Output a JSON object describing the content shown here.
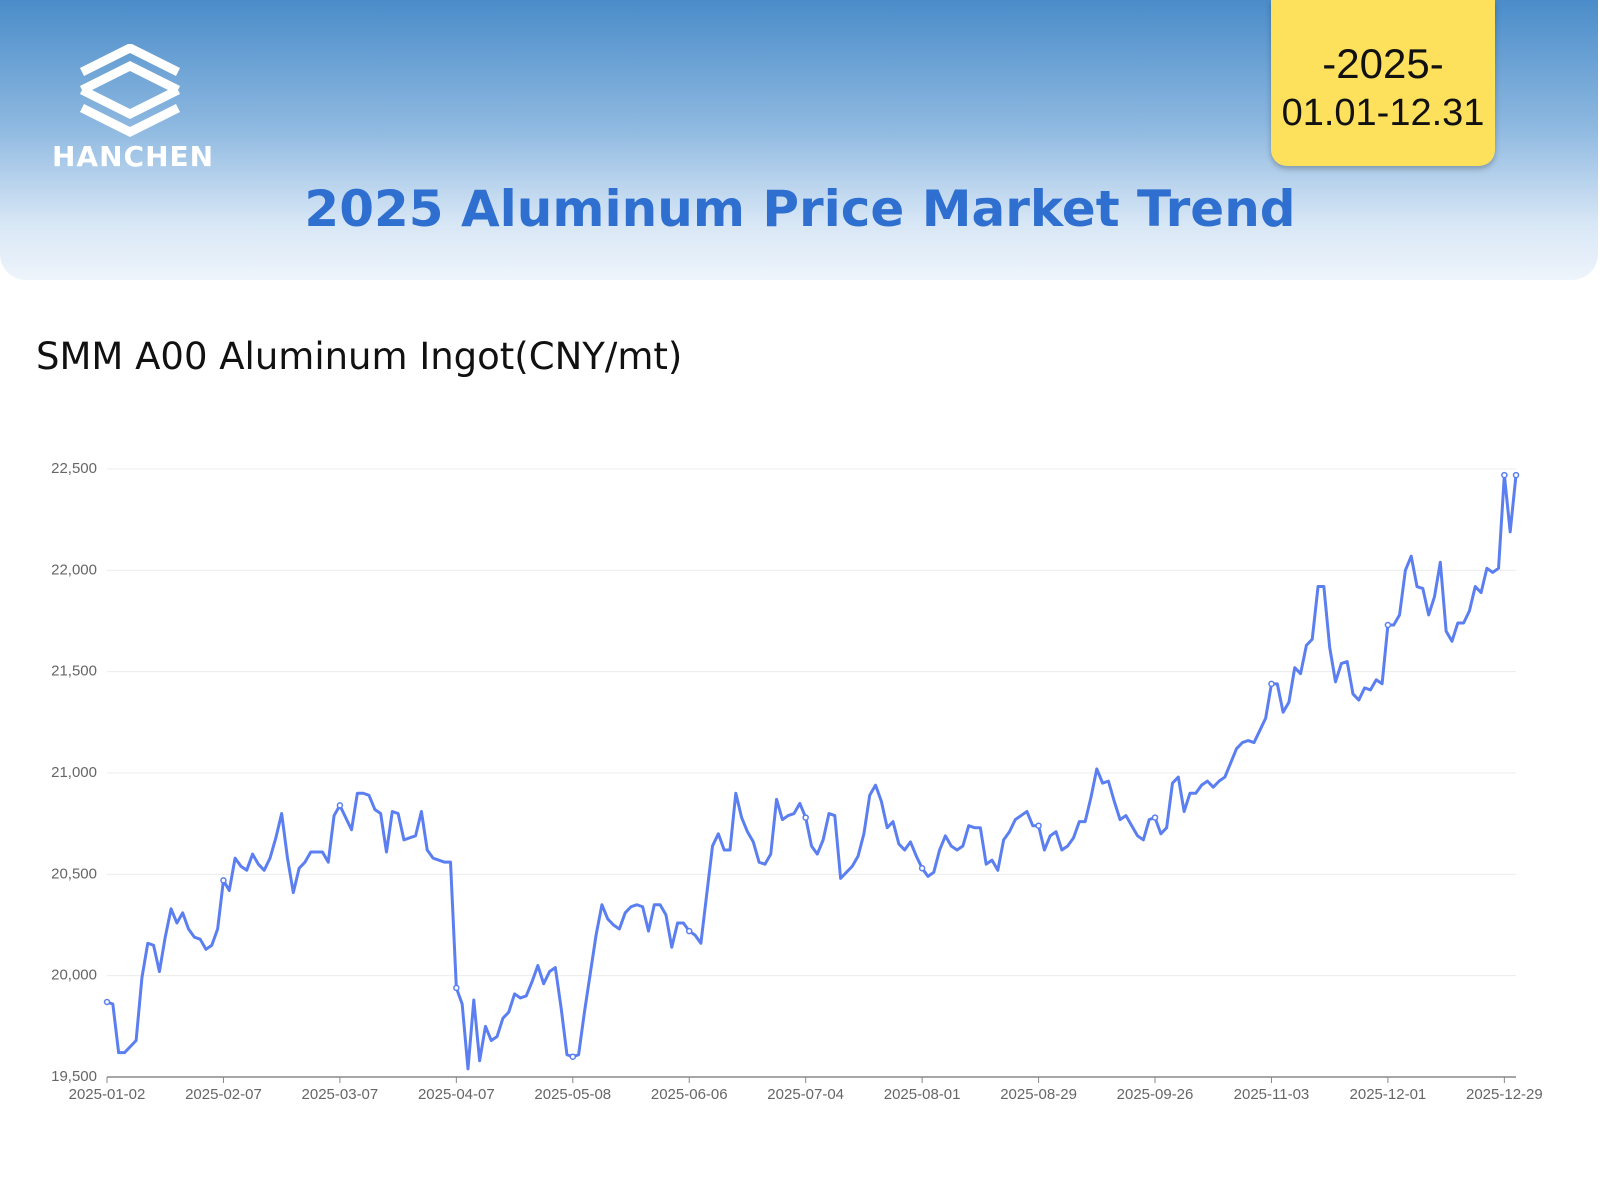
{
  "header": {
    "logo_text": "HANCHEN",
    "badge_year": "-2025-",
    "badge_range": "01.01-12.31",
    "title": "2025 Aluminum Price Market Trend"
  },
  "chart_data": {
    "type": "line",
    "title": "SMM A00 Aluminum Ingot(CNY/mt)",
    "categories": [
      "2025-01-02",
      null,
      null,
      null,
      null,
      null,
      null,
      null,
      null,
      null,
      null,
      null,
      null,
      null,
      null,
      null,
      null,
      null,
      null,
      null,
      "2025-02-07",
      null,
      null,
      null,
      null,
      null,
      null,
      null,
      null,
      null,
      null,
      null,
      null,
      null,
      null,
      null,
      null,
      null,
      null,
      null,
      "2025-03-07",
      null,
      null,
      null,
      null,
      null,
      null,
      null,
      null,
      null,
      null,
      null,
      null,
      null,
      null,
      null,
      null,
      null,
      null,
      null,
      "2025-04-07",
      null,
      null,
      null,
      null,
      null,
      null,
      null,
      null,
      null,
      null,
      null,
      null,
      null,
      null,
      null,
      null,
      null,
      null,
      null,
      "2025-05-08",
      null,
      null,
      null,
      null,
      null,
      null,
      null,
      null,
      null,
      null,
      null,
      null,
      null,
      null,
      null,
      null,
      null,
      null,
      null,
      "2025-06-06",
      null,
      null,
      null,
      null,
      null,
      null,
      null,
      null,
      null,
      null,
      null,
      null,
      null,
      null,
      null,
      null,
      null,
      null,
      null,
      "2025-07-04",
      null,
      null,
      null,
      null,
      null,
      null,
      null,
      null,
      null,
      null,
      null,
      null,
      null,
      null,
      null,
      null,
      null,
      null,
      null,
      "2025-08-01",
      null,
      null,
      null,
      null,
      null,
      null,
      null,
      null,
      null,
      null,
      null,
      null,
      null,
      null,
      null,
      null,
      null,
      null,
      null,
      "2025-08-29",
      null,
      null,
      null,
      null,
      null,
      null,
      null,
      null,
      null,
      null,
      null,
      null,
      null,
      null,
      null,
      null,
      null,
      null,
      null,
      "2025-09-26",
      null,
      null,
      null,
      null,
      null,
      null,
      null,
      null,
      null,
      null,
      null,
      null,
      null,
      null,
      null,
      null,
      null,
      null,
      null,
      "2025-11-03",
      null,
      null,
      null,
      null,
      null,
      null,
      null,
      null,
      null,
      null,
      null,
      null,
      null,
      null,
      null,
      null,
      null,
      null,
      null,
      "2025-12-01",
      null,
      null,
      null,
      null,
      null,
      null,
      null,
      null,
      null,
      null,
      null,
      null,
      null,
      null,
      null,
      null,
      null,
      null,
      null,
      "2025-12-29",
      null,
      null
    ],
    "series": [
      {
        "name": "SMM A00 Aluminum Ingot",
        "color": "#5b7ff0",
        "values": [
          19870,
          19860,
          19620,
          19620,
          19650,
          19680,
          19990,
          20160,
          20150,
          20020,
          20190,
          20330,
          20260,
          20310,
          20230,
          20190,
          20180,
          20130,
          20150,
          20230,
          20470,
          20420,
          20580,
          20540,
          20520,
          20600,
          20550,
          20520,
          20580,
          20680,
          20800,
          20580,
          20410,
          20530,
          20560,
          20610,
          20610,
          20610,
          20560,
          20790,
          20840,
          20780,
          20720,
          20900,
          20900,
          20890,
          20820,
          20800,
          20610,
          20810,
          20800,
          20670,
          20680,
          20690,
          20810,
          20620,
          20580,
          20570,
          20560,
          20560,
          19940,
          19860,
          19540,
          19880,
          19580,
          19750,
          19680,
          19700,
          19790,
          19820,
          19910,
          19890,
          19900,
          19970,
          20050,
          19960,
          20020,
          20040,
          19840,
          19610,
          19600,
          19610,
          19820,
          20010,
          20200,
          20350,
          20280,
          20250,
          20230,
          20310,
          20340,
          20350,
          20340,
          20220,
          20350,
          20350,
          20300,
          20140,
          20260,
          20260,
          20220,
          20200,
          20160,
          20400,
          20640,
          20700,
          20620,
          20620,
          20900,
          20780,
          20710,
          20660,
          20560,
          20550,
          20600,
          20870,
          20770,
          20790,
          20800,
          20850,
          20780,
          20640,
          20600,
          20670,
          20800,
          20790,
          20480,
          20510,
          20540,
          20590,
          20700,
          20890,
          20940,
          20860,
          20730,
          20760,
          20650,
          20620,
          20660,
          20590,
          20530,
          20490,
          20510,
          20620,
          20690,
          20640,
          20620,
          20640,
          20740,
          20730,
          20730,
          20550,
          20570,
          20520,
          20670,
          20710,
          20770,
          20790,
          20810,
          20740,
          20740,
          20620,
          20690,
          20710,
          20620,
          20640,
          20680,
          20760,
          20760,
          20880,
          21020,
          20950,
          20960,
          20860,
          20770,
          20790,
          20740,
          20690,
          20670,
          20770,
          20780,
          20700,
          20730,
          20950,
          20980,
          20810,
          20900,
          20900,
          20940,
          20960,
          20930,
          20960,
          20980,
          21050,
          21120,
          21150,
          21160,
          21150,
          21210,
          21270,
          21440,
          21440,
          21300,
          21350,
          21520,
          21490,
          21630,
          21660,
          21920,
          21920,
          21620,
          21450,
          21540,
          21550,
          21390,
          21360,
          21420,
          21410,
          21460,
          21440,
          21730,
          21730,
          21780,
          22000,
          22070,
          21920,
          21910,
          21780,
          21870,
          22040,
          21700,
          21650,
          21740,
          21740,
          21800,
          21920,
          21890,
          22010,
          21990,
          22010,
          22470,
          22190,
          22470
        ]
      }
    ],
    "ylim": [
      19500,
      22500
    ],
    "yticks": [
      {
        "value": 19500,
        "label": "19,500"
      },
      {
        "value": 20000,
        "label": "20,000"
      },
      {
        "value": 20500,
        "label": "20,500"
      },
      {
        "value": 21000,
        "label": "21,000"
      },
      {
        "value": 21500,
        "label": "21,500"
      },
      {
        "value": 22000,
        "label": "22,000"
      },
      {
        "value": 22500,
        "label": "22,500"
      }
    ],
    "grid": true
  }
}
